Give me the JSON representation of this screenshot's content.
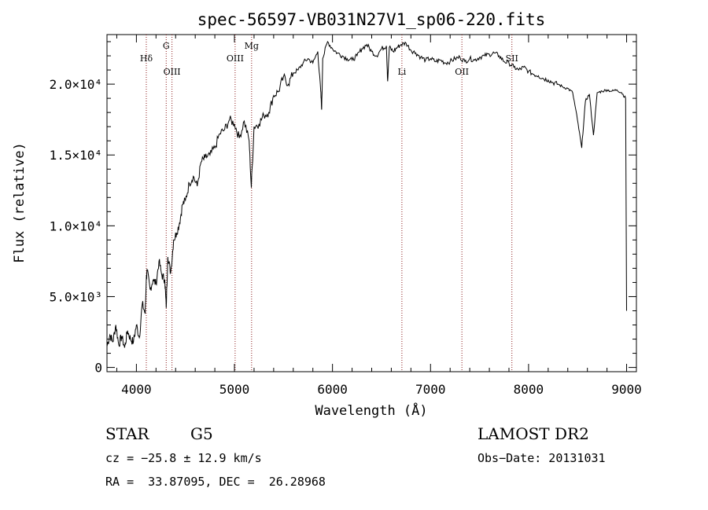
{
  "chart_data": {
    "type": "line",
    "title": "spec-56597-VB031N27V1_sp06-220.fits",
    "xlabel": "Wavelength (Å)",
    "ylabel": "Flux (relative)",
    "xlim": [
      3700,
      9100
    ],
    "ylim": [
      -300,
      23500
    ],
    "grid": false,
    "x_ticks": [
      {
        "value": 4000,
        "label": "4000"
      },
      {
        "value": 5000,
        "label": "5000"
      },
      {
        "value": 6000,
        "label": "6000"
      },
      {
        "value": 7000,
        "label": "7000"
      },
      {
        "value": 8000,
        "label": "8000"
      },
      {
        "value": 9000,
        "label": "9000"
      }
    ],
    "y_ticks": [
      {
        "value": 0,
        "label": "0"
      },
      {
        "value": 5000,
        "label": "5.0×10³"
      },
      {
        "value": 10000,
        "label": "1.0×10⁴"
      },
      {
        "value": 15000,
        "label": "1.5×10⁴"
      },
      {
        "value": 20000,
        "label": "2.0×10⁴"
      }
    ],
    "series": [
      {
        "color": "#000000",
        "x": [
          3700,
          3730,
          3760,
          3790,
          3820,
          3850,
          3880,
          3910,
          3940,
          3970,
          4000,
          4030,
          4060,
          4090,
          4101,
          4110,
          4140,
          4170,
          4200,
          4230,
          4260,
          4290,
          4304,
          4320,
          4350,
          4380,
          4410,
          4440,
          4470,
          4500,
          4540,
          4580,
          4620,
          4660,
          4700,
          4750,
          4800,
          4850,
          4900,
          4950,
          5000,
          5050,
          5100,
          5150,
          5172,
          5200,
          5250,
          5300,
          5350,
          5400,
          5450,
          5500,
          5550,
          5600,
          5650,
          5700,
          5750,
          5800,
          5850,
          5880,
          5890,
          5900,
          5950,
          6000,
          6050,
          6100,
          6150,
          6200,
          6250,
          6300,
          6350,
          6400,
          6450,
          6500,
          6550,
          6563,
          6580,
          6620,
          6660,
          6700,
          6750,
          6800,
          6850,
          6900,
          6950,
          7000,
          7050,
          7100,
          7150,
          7200,
          7250,
          7300,
          7350,
          7400,
          7450,
          7500,
          7550,
          7600,
          7650,
          7700,
          7750,
          7800,
          7850,
          7900,
          7950,
          8000,
          8050,
          8100,
          8150,
          8200,
          8250,
          8300,
          8350,
          8400,
          8450,
          8498,
          8542,
          8580,
          8620,
          8662,
          8700,
          8750,
          8800,
          8850,
          8900,
          8950,
          8990,
          9000
        ],
        "values": [
          1500,
          2300,
          1800,
          3000,
          1600,
          2200,
          1400,
          2600,
          2000,
          1800,
          3000,
          2100,
          4500,
          3800,
          6300,
          6800,
          5500,
          6200,
          5900,
          7500,
          6500,
          6200,
          4200,
          7800,
          6700,
          9000,
          9500,
          10200,
          11500,
          11800,
          13000,
          13500,
          12800,
          14500,
          14800,
          15000,
          15500,
          16500,
          16800,
          17500,
          17200,
          16200,
          17400,
          16000,
          12700,
          17000,
          17200,
          17800,
          18000,
          19200,
          19500,
          20500,
          20000,
          20800,
          21000,
          21500,
          21800,
          21500,
          22300,
          19500,
          18200,
          21800,
          23000,
          22500,
          22200,
          22000,
          21800,
          21700,
          22000,
          22500,
          22800,
          22300,
          22000,
          22500,
          22700,
          20200,
          22600,
          22300,
          22600,
          22800,
          22900,
          22400,
          22200,
          21900,
          21700,
          21800,
          21600,
          21700,
          21500,
          21600,
          21800,
          21900,
          21600,
          21800,
          21700,
          21900,
          22000,
          22100,
          22200,
          22000,
          21600,
          21500,
          21200,
          21000,
          21200,
          20900,
          20700,
          20600,
          20400,
          20300,
          20100,
          20000,
          19800,
          19700,
          19400,
          17500,
          15500,
          18800,
          19300,
          16400,
          19400,
          19500,
          19600,
          19500,
          19600,
          19400,
          19000,
          4000
        ]
      }
    ],
    "annotations": [
      {
        "label": "Hδ",
        "x": 4101,
        "pos": "top"
      },
      {
        "label": "G",
        "x": 4304,
        "pos": "high"
      },
      {
        "label": "OIII",
        "x": 4363,
        "pos": "low"
      },
      {
        "label": "OIII",
        "x": 5007,
        "pos": "top"
      },
      {
        "label": "Mg",
        "x": 5175,
        "pos": "high"
      },
      {
        "label": "Li",
        "x": 6708,
        "pos": "low"
      },
      {
        "label": "OII",
        "x": 7320,
        "pos": "low"
      },
      {
        "label": "SII",
        "x": 7830,
        "pos": "top"
      }
    ]
  },
  "info": {
    "object_class": "STAR",
    "subclass": "G5",
    "survey": "LAMOST DR2",
    "cz": "cz = −25.8 ± 12.9 km/s",
    "obs_date": "Obs−Date: 20131031",
    "coords": "RA =  33.87095, DEC =  26.28968"
  },
  "colors": {
    "spectrum": "#000000",
    "line_marker": "#8b1a1a",
    "background": "#ffffff"
  }
}
